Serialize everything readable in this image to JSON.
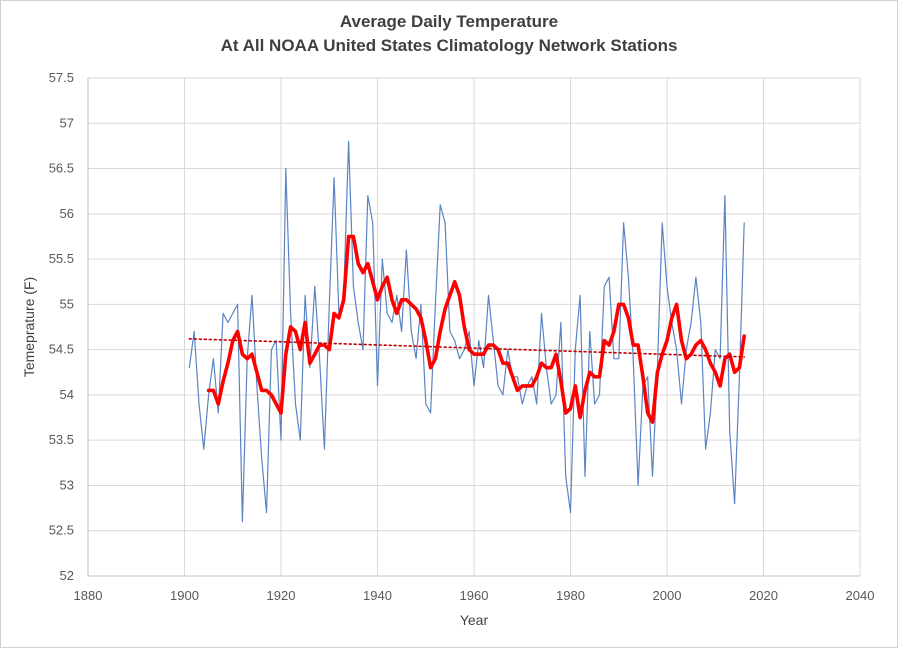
{
  "chart_data": {
    "type": "line",
    "title": "Average Daily Temperature",
    "subtitle": "At All NOAA United States Climatology Network Stations",
    "xlabel": "Year",
    "ylabel": "Temeprature (F)",
    "xlim": [
      1880,
      2040
    ],
    "ylim": [
      52,
      57.5
    ],
    "x_ticks": [
      "1880",
      "1900",
      "1920",
      "1940",
      "1960",
      "1980",
      "2000",
      "2020",
      "2040"
    ],
    "y_ticks": [
      "52",
      "52.5",
      "53",
      "53.5",
      "54",
      "54.5",
      "55",
      "55.5",
      "56",
      "56.5",
      "57",
      "57.5"
    ],
    "grid": "vertical-and-horizontal",
    "legend": "none",
    "series": [
      {
        "kind": "annual",
        "color": "#5b84c4",
        "x": [
          1901,
          1902,
          1903,
          1904,
          1905,
          1906,
          1907,
          1908,
          1909,
          1910,
          1911,
          1912,
          1913,
          1914,
          1915,
          1916,
          1917,
          1918,
          1919,
          1920,
          1921,
          1922,
          1923,
          1924,
          1925,
          1926,
          1927,
          1928,
          1929,
          1930,
          1931,
          1932,
          1933,
          1934,
          1935,
          1936,
          1937,
          1938,
          1939,
          1940,
          1941,
          1942,
          1943,
          1944,
          1945,
          1946,
          1947,
          1948,
          1949,
          1950,
          1951,
          1952,
          1953,
          1954,
          1955,
          1956,
          1957,
          1958,
          1959,
          1960,
          1961,
          1962,
          1963,
          1964,
          1965,
          1966,
          1967,
          1968,
          1969,
          1970,
          1971,
          1972,
          1973,
          1974,
          1975,
          1976,
          1977,
          1978,
          1979,
          1980,
          1981,
          1982,
          1983,
          1984,
          1985,
          1986,
          1987,
          1988,
          1989,
          1990,
          1991,
          1992,
          1993,
          1994,
          1995,
          1996,
          1997,
          1998,
          1999,
          2000,
          2001,
          2002,
          2003,
          2004,
          2005,
          2006,
          2007,
          2008,
          2009,
          2010,
          2011,
          2012,
          2013,
          2014,
          2015,
          2016
        ],
        "y": [
          54.3,
          54.7,
          53.9,
          53.4,
          54.0,
          54.4,
          53.8,
          54.9,
          54.8,
          54.9,
          55.0,
          52.6,
          54.4,
          55.1,
          54.1,
          53.3,
          52.7,
          54.5,
          54.6,
          53.5,
          56.5,
          54.9,
          53.9,
          53.5,
          55.1,
          54.3,
          55.2,
          54.4,
          53.4,
          55.0,
          56.4,
          54.9,
          55.1,
          56.8,
          55.2,
          54.8,
          54.5,
          56.2,
          55.9,
          54.1,
          55.5,
          54.9,
          54.8,
          55.1,
          54.7,
          55.6,
          54.7,
          54.4,
          55.0,
          53.9,
          53.8,
          55.0,
          56.1,
          55.9,
          54.7,
          54.6,
          54.4,
          54.5,
          54.7,
          54.1,
          54.6,
          54.3,
          55.1,
          54.6,
          54.1,
          54.0,
          54.5,
          54.2,
          54.2,
          53.9,
          54.1,
          54.2,
          53.9,
          54.9,
          54.3,
          53.9,
          54.0,
          54.8,
          53.1,
          52.7,
          54.5,
          55.1,
          53.1,
          54.7,
          53.9,
          54.0,
          55.2,
          55.3,
          54.4,
          54.4,
          55.9,
          55.3,
          54.4,
          53.0,
          54.1,
          54.2,
          53.1,
          54.3,
          55.9,
          55.2,
          54.8,
          54.5,
          53.9,
          54.5,
          54.8,
          55.3,
          54.8,
          53.4,
          53.8,
          54.5,
          54.4,
          56.2,
          53.6,
          52.8,
          54.2,
          55.9
        ]
      },
      {
        "kind": "moving-average",
        "color": "#ff0000",
        "x": [
          1905,
          1906,
          1907,
          1908,
          1909,
          1910,
          1911,
          1912,
          1913,
          1914,
          1915,
          1916,
          1917,
          1918,
          1919,
          1920,
          1921,
          1922,
          1923,
          1924,
          1925,
          1926,
          1927,
          1928,
          1929,
          1930,
          1931,
          1932,
          1933,
          1934,
          1935,
          1936,
          1937,
          1938,
          1939,
          1940,
          1941,
          1942,
          1943,
          1944,
          1945,
          1946,
          1947,
          1948,
          1949,
          1950,
          1951,
          1952,
          1953,
          1954,
          1955,
          1956,
          1957,
          1958,
          1959,
          1960,
          1961,
          1962,
          1963,
          1964,
          1965,
          1966,
          1967,
          1968,
          1969,
          1970,
          1971,
          1972,
          1973,
          1974,
          1975,
          1976,
          1977,
          1978,
          1979,
          1980,
          1981,
          1982,
          1983,
          1984,
          1985,
          1986,
          1987,
          1988,
          1989,
          1990,
          1991,
          1992,
          1993,
          1994,
          1995,
          1996,
          1997,
          1998,
          1999,
          2000,
          2001,
          2002,
          2003,
          2004,
          2005,
          2006,
          2007,
          2008,
          2009,
          2010,
          2011,
          2012,
          2013,
          2014,
          2015,
          2016
        ],
        "y": [
          54.05,
          54.05,
          53.9,
          54.15,
          54.35,
          54.6,
          54.7,
          54.45,
          54.4,
          54.45,
          54.25,
          54.05,
          54.05,
          54.0,
          53.9,
          53.8,
          54.45,
          54.75,
          54.7,
          54.5,
          54.8,
          54.35,
          54.45,
          54.55,
          54.55,
          54.5,
          54.9,
          54.85,
          55.05,
          55.75,
          55.75,
          55.45,
          55.35,
          55.45,
          55.25,
          55.05,
          55.2,
          55.3,
          55.05,
          54.9,
          55.05,
          55.05,
          55.0,
          54.95,
          54.85,
          54.6,
          54.3,
          54.4,
          54.7,
          54.95,
          55.1,
          55.25,
          55.1,
          54.75,
          54.5,
          54.45,
          54.45,
          54.45,
          54.55,
          54.55,
          54.5,
          54.35,
          54.35,
          54.2,
          54.05,
          54.1,
          54.1,
          54.1,
          54.2,
          54.35,
          54.3,
          54.3,
          54.45,
          54.15,
          53.8,
          53.85,
          54.1,
          53.75,
          54.05,
          54.25,
          54.2,
          54.2,
          54.6,
          54.55,
          54.7,
          55.0,
          55.0,
          54.85,
          54.55,
          54.55,
          54.2,
          53.8,
          53.7,
          54.25,
          54.45,
          54.6,
          54.85,
          55.0,
          54.6,
          54.4,
          54.45,
          54.55,
          54.6,
          54.5,
          54.35,
          54.25,
          54.1,
          54.4,
          54.45,
          54.25,
          54.3,
          54.65
        ]
      },
      {
        "kind": "linear-trend",
        "color": "#c00000",
        "x": [
          1901,
          2016
        ],
        "y": [
          54.62,
          54.42
        ]
      }
    ]
  }
}
